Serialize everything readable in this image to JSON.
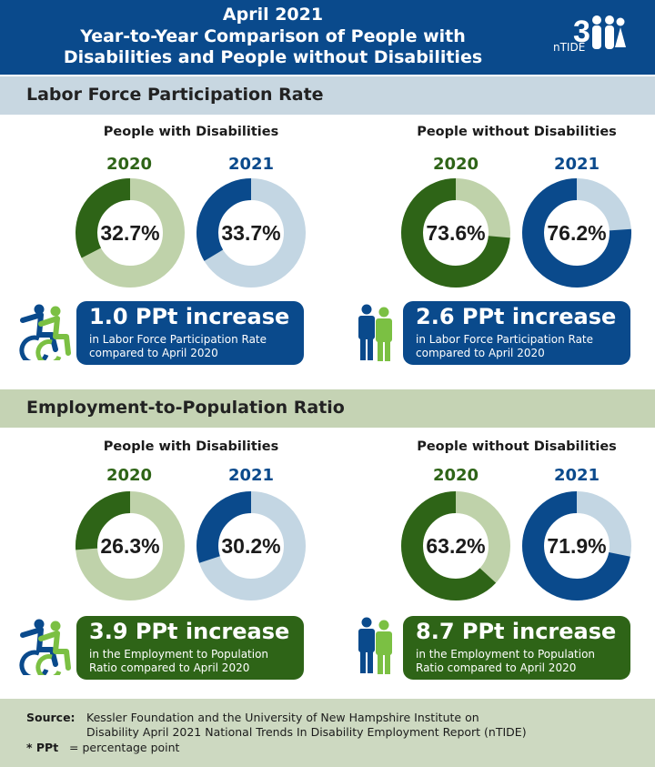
{
  "header": {
    "title_line1": "April 2021",
    "title_line2": "Year-to-Year Comparison of People with",
    "title_line3": "Disabilities and People without Disabilities",
    "logo_text": "nTIDE",
    "logo_number": "3",
    "colors": {
      "background": "#0a4a8c",
      "text": "#ffffff"
    }
  },
  "colors": {
    "y2020_dark": "#2e6417",
    "y2020_light": "#bfd2aa",
    "y2021_dark": "#0a4a8c",
    "y2021_light": "#c3d6e3",
    "pill_blue": "#0a4a8c",
    "pill_green": "#2e6417"
  },
  "sections": [
    {
      "title": "Labor Force Participation Rate",
      "band_color": "#c8d7e1",
      "groups": [
        {
          "label": "People with Disabilities",
          "icon": "wheelchair-icon",
          "pill": {
            "big": "1.0 PPt increase",
            "line1": "in Labor Force Participation Rate",
            "line2": "compared to April 2020",
            "color": "#0a4a8c"
          }
        },
        {
          "label": "People without Disabilities",
          "icon": "people-icon",
          "pill": {
            "big": "2.6 PPt increase",
            "line1": "in Labor Force Participation Rate",
            "line2": "compared to April 2020",
            "color": "#0a4a8c"
          }
        }
      ]
    },
    {
      "title": "Employment-to-Population Ratio",
      "band_color": "#c5d3b4",
      "groups": [
        {
          "label": "People with Disabilities",
          "icon": "wheelchair-icon",
          "pill": {
            "big": "3.9 PPt increase",
            "line1": "in the Employment to Population",
            "line2": "Ratio compared to April 2020",
            "color": "#2e6417"
          }
        },
        {
          "label": "People without Disabilities",
          "icon": "people-icon",
          "pill": {
            "big": "8.7 PPt increase",
            "line1": "in the Employment to Population",
            "line2": "Ratio compared to April 2020",
            "color": "#2e6417"
          }
        }
      ]
    }
  ],
  "chart_data": [
    {
      "type": "pie",
      "title": "",
      "categories": [
        "2020",
        "2021"
      ],
      "series": [
        {
          "name": "People with Disabilities",
          "values": [
            32.7,
            33.7
          ],
          "labels": [
            "32.7%",
            "33.7%"
          ]
        },
        {
          "name": "People without Disabilities",
          "values": [
            73.6,
            76.2
          ],
          "labels": [
            "73.6%",
            "76.2%"
          ]
        }
      ]
    },
    {
      "type": "pie",
      "title": "",
      "categories": [
        "2020",
        "2021"
      ],
      "series": [
        {
          "name": "People with Disabilities",
          "values": [
            26.3,
            30.2
          ],
          "labels": [
            "26.3%",
            "30.2%"
          ]
        },
        {
          "name": "People without Disabilities",
          "values": [
            63.2,
            71.9
          ],
          "labels": [
            "63.2%",
            "71.9%"
          ]
        }
      ]
    }
  ],
  "footer": {
    "source_label": "Source:",
    "source_line1": "Kessler Foundation and the University of New Hampshire Institute on",
    "source_line2": "Disability April 2021 National Trends In Disability Employment Report (nTIDE)",
    "ppt_label": "* PPt",
    "ppt_text": "= percentage point"
  }
}
